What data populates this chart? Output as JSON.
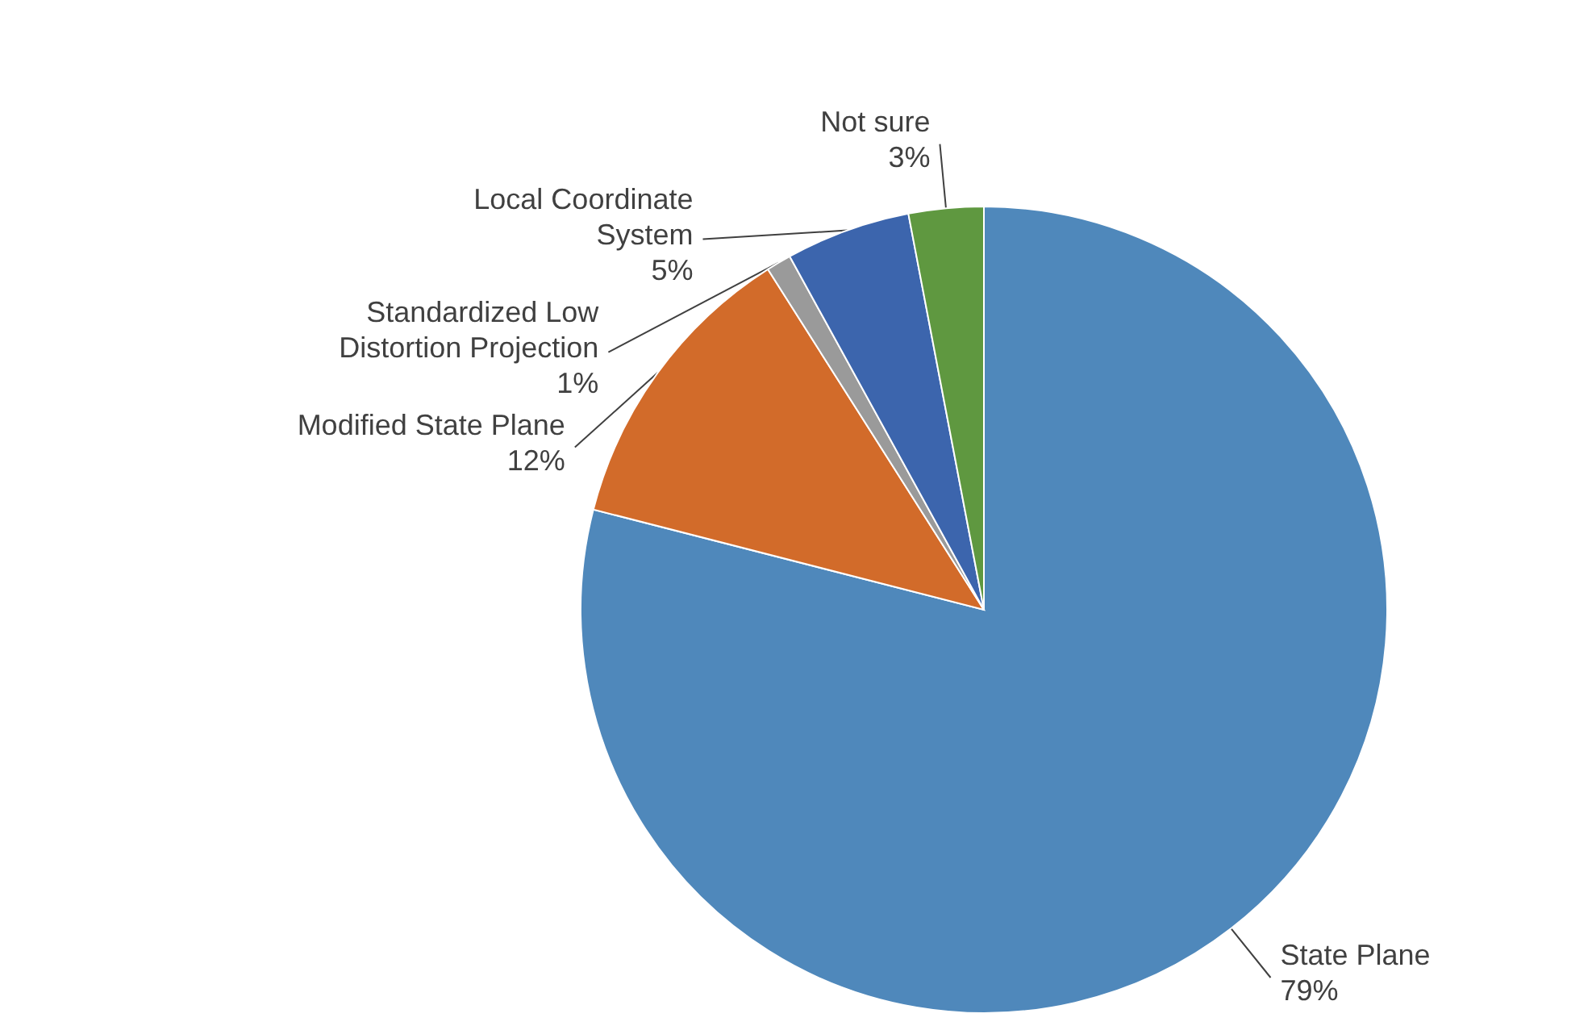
{
  "chart_data": {
    "type": "pie",
    "categories": [
      "State Plane",
      "Modified State Plane",
      "Standardized Low Distortion Projection",
      "Local Coordinate System",
      "Not sure"
    ],
    "values": [
      79,
      12,
      1,
      5,
      3
    ],
    "value_labels": [
      "79%",
      "12%",
      "1%",
      "5%",
      "3%"
    ],
    "colors": [
      "#4f88bb",
      "#d26b2a",
      "#9a9a9a",
      "#3c65ad",
      "#5f9840"
    ],
    "legend": false
  }
}
